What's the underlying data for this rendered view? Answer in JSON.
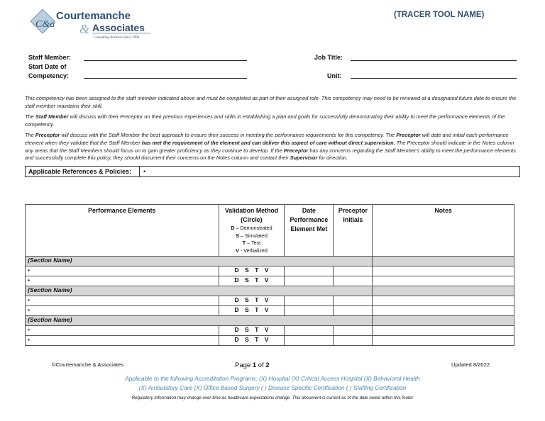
{
  "logo": {
    "name": "Courtemanche",
    "name2": "Associates",
    "tagline": "Consulting Partners Since 1994",
    "monogram": "C&A",
    "color": "#2f4f72"
  },
  "title": "(TRACER TOOL NAME)",
  "fields": {
    "staff_member": "Staff Member:",
    "start_date_1": "Start Date of",
    "start_date_2": "Competency:",
    "job_title": "Job Title:",
    "unit": "Unit:"
  },
  "paragraphs": {
    "p1": "This competency has been assigned to the staff member indicated above and must be completed as part of their assigned role.  This competency may need to be renewed at a designated future date to ensure the staff member maintains their skill.",
    "p2a": "The ",
    "p2b": "Staff Member",
    "p2c": " will discuss with their Preceptor on their previous experiences and skills in establishing a plan and goals for successfully demonstrating their ability to meet the performance elements of the competency.",
    "p3a": "The ",
    "p3b": "Preceptor",
    "p3c": " will discuss with the Staff Member the best approach to ensure their success in meeting the performance requirements for this competency.  The ",
    "p3d": "Preceptor",
    "p3e": " will date and initial each performance element when they validate that the Staff Member ",
    "p3f": "has met the requirement of the element and can deliver this aspect of care without direct supervision.",
    "p3g": "  The Preceptor should indicate in the Notes column any areas that the Staff Members should focus on to gain greater proficiency as they continue to develop.  If the ",
    "p3h": "Preceptor",
    "p3i": " has any concerns regarding the Staff Member's ability to meet the performance elements and successfully complete this policy, they should document their concerns on the Notes column and contact their ",
    "p3j": "Supervisor",
    "p3k": " for direction."
  },
  "references": {
    "label": "Applicable References & Policies:",
    "value": "•"
  },
  "table": {
    "headers": {
      "elements": "Performance Elements",
      "validation": "Validation Method",
      "circle": "(Circle)",
      "date": "Date Performance Element Met",
      "initials": "Preceptor Initials",
      "notes": "Notes"
    },
    "legend": [
      {
        "k": "D",
        "v": " – Demonstrated"
      },
      {
        "k": "S",
        "v": " – Simulated"
      },
      {
        "k": "T",
        "v": " – Test"
      },
      {
        "k": "V",
        "v": " - Verbalized"
      }
    ],
    "sections": [
      {
        "name": "(Section Name)",
        "rows": [
          {
            "bullet": "•",
            "method": "D S T V"
          },
          {
            "bullet": "•",
            "method": "D S T V"
          }
        ]
      },
      {
        "name": "(Section Name)",
        "rows": [
          {
            "bullet": "•",
            "method": "D S T V"
          },
          {
            "bullet": "•",
            "method": "D S T V"
          }
        ]
      },
      {
        "name": "(Section Name)",
        "rows": [
          {
            "bullet": "•",
            "method": "D S T V"
          },
          {
            "bullet": "•",
            "method": "D S T V"
          }
        ]
      }
    ]
  },
  "footer": {
    "copyright": "©Courtemanche & Associates",
    "page_a": "Page ",
    "page_num": "1",
    "page_b": " of ",
    "page_total": "2",
    "updated": "Updated 8/2022",
    "acc1": "Applicable to the following Accreditation Programs: (X) Hospital   (X) Critical Access Hospital  (X) Behavioral Health",
    "acc2": "(X) Ambulatory Care   (X) Office Based Surgery  ( ) Disease Specific Certification  ( ) Staffing Certification",
    "disclaimer": "Regulatory Information may change over time as healthcare expectations change. This document is current as of the date noted within this footer"
  }
}
